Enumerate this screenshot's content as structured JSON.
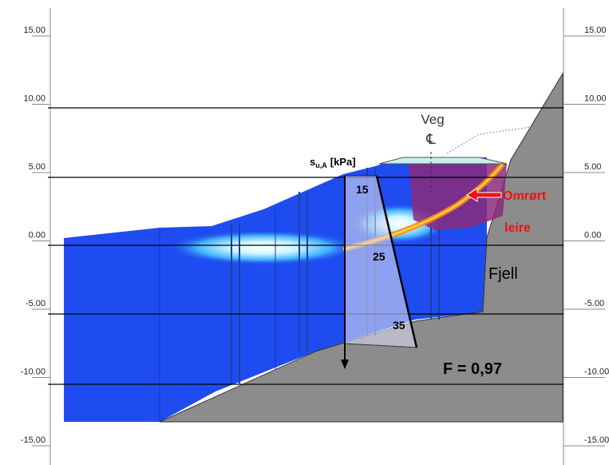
{
  "axis": {
    "left_ticks": [
      "15.00",
      "10.00",
      "5.00",
      "0.00",
      "-5.00",
      "-10.00",
      "-15.00"
    ],
    "right_ticks": [
      "15.00",
      "10.00",
      "5.00",
      "0.00",
      "-5.00",
      "-10.00",
      "-15.00"
    ]
  },
  "labels": {
    "veg": "Veg",
    "centerline": "℄",
    "su": "s",
    "su_sub": "u,A",
    "su_unit": "[kPa]",
    "profile": [
      "15",
      "25",
      "35"
    ],
    "remoulded": [
      "Omrørt",
      "leire"
    ],
    "rock": "Fjell",
    "safety_factor": "F = 0,97"
  }
}
